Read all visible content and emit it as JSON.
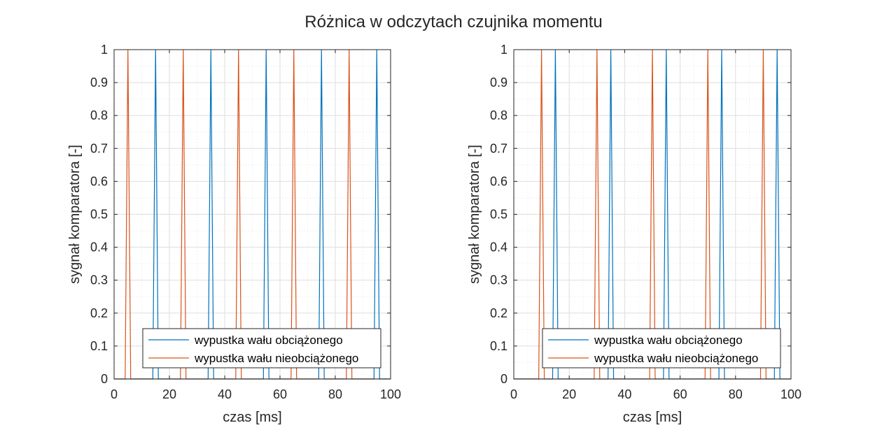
{
  "title": "Różnica w odczytach czujnika momentu",
  "colors": {
    "series1": "#0072BD",
    "series2": "#D95319",
    "grid": "#dedede",
    "axis": "#262626"
  },
  "chart_data": [
    {
      "type": "line",
      "xlabel": "czas [ms]",
      "ylabel": "sygnał komparatora [-]",
      "xlim": [
        0,
        100
      ],
      "ylim": [
        0,
        1
      ],
      "xticks": [
        "0",
        "20",
        "40",
        "60",
        "80",
        "100"
      ],
      "yticks": [
        "0",
        "0.1",
        "0.2",
        "0.3",
        "0.4",
        "0.5",
        "0.6",
        "0.7",
        "0.8",
        "0.9",
        "1"
      ],
      "grid": true,
      "legend_position": "bottom-right",
      "series": [
        {
          "name": "wypustka wału obciążonego",
          "pulse_centers": [
            15,
            35,
            55,
            75,
            95
          ],
          "pulse_half_width": 1,
          "high": 1,
          "low": 0
        },
        {
          "name": "wypustka wału nieobciążonego",
          "pulse_centers": [
            5,
            25,
            45,
            65,
            85
          ],
          "pulse_half_width": 1,
          "high": 1,
          "low": 0
        }
      ]
    },
    {
      "type": "line",
      "xlabel": "czas [ms]",
      "ylabel": "sygnał komparatora [-]",
      "xlim": [
        0,
        100
      ],
      "ylim": [
        0,
        1
      ],
      "xticks": [
        "0",
        "20",
        "40",
        "60",
        "80",
        "100"
      ],
      "yticks": [
        "0",
        "0.1",
        "0.2",
        "0.3",
        "0.4",
        "0.5",
        "0.6",
        "0.7",
        "0.8",
        "0.9",
        "1"
      ],
      "grid": true,
      "legend_position": "bottom-right",
      "series": [
        {
          "name": "wypustka wału obciążonego",
          "pulse_centers": [
            15,
            35,
            55,
            75,
            95
          ],
          "pulse_half_width": 1,
          "high": 1,
          "low": 0
        },
        {
          "name": "wypustka wału nieobciążonego",
          "pulse_centers": [
            10,
            30,
            50,
            70,
            90
          ],
          "pulse_half_width": 1,
          "high": 1,
          "low": 0
        }
      ]
    }
  ]
}
